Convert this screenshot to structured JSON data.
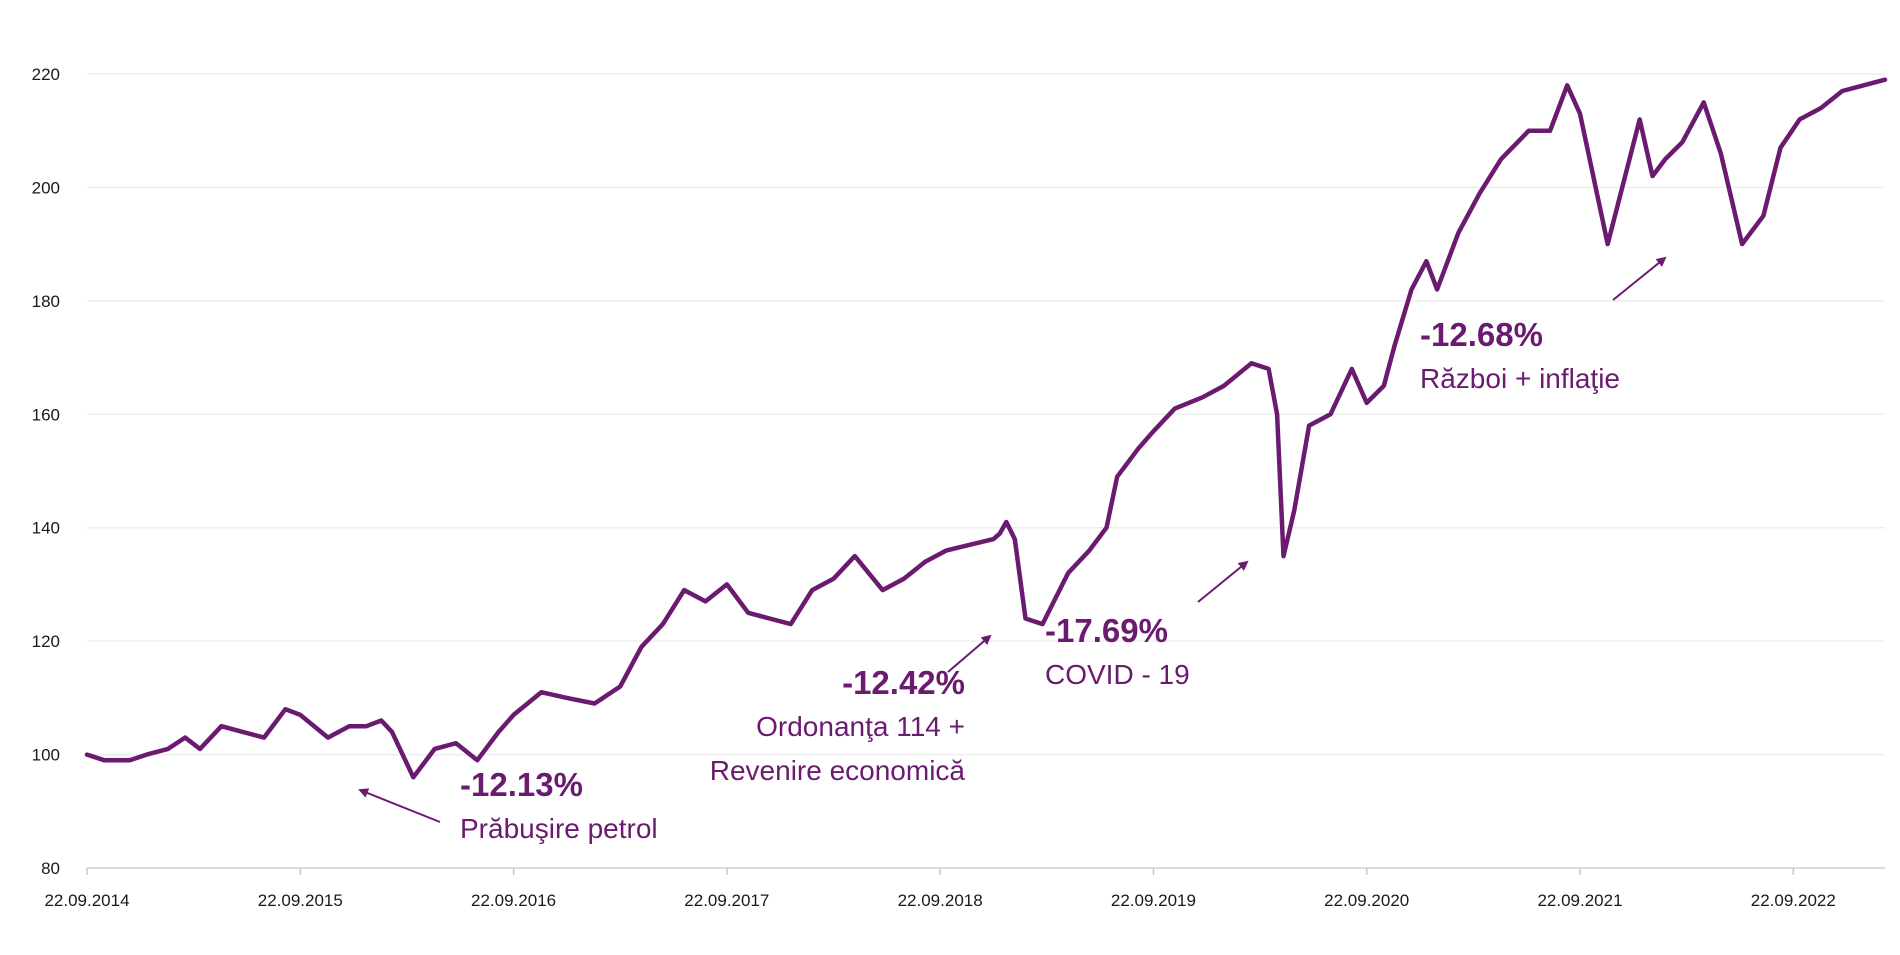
{
  "chart_data": {
    "type": "line",
    "title": "",
    "xlabel": "",
    "ylabel": "",
    "ylim": [
      80,
      220
    ],
    "yticks": [
      80,
      100,
      120,
      140,
      160,
      180,
      200,
      220
    ],
    "xticks": [
      "22.09.2014",
      "22.09.2015",
      "22.09.2016",
      "22.09.2017",
      "22.09.2018",
      "22.09.2019",
      "22.09.2020",
      "22.09.2021",
      "22.09.2022"
    ],
    "grid": "horizontal",
    "line_color": "#6a1b6f",
    "annotation_color": "#6a1b6f",
    "series": [
      {
        "x": [
          2014.72,
          2014.8,
          2014.85,
          2014.92,
          2015.0,
          2015.1,
          2015.18,
          2015.25,
          2015.35,
          2015.45,
          2015.55,
          2015.65,
          2015.72,
          2015.85,
          2015.95,
          2016.03,
          2016.1,
          2016.15,
          2016.25,
          2016.35,
          2016.45,
          2016.55,
          2016.65,
          2016.72,
          2016.85,
          2016.97,
          2017.1,
          2017.22,
          2017.32,
          2017.42,
          2017.52,
          2017.62,
          2017.72,
          2017.82,
          2017.92,
          2018.02,
          2018.12,
          2018.22,
          2018.32,
          2018.45,
          2018.55,
          2018.65,
          2018.75,
          2018.97,
          2019.0,
          2019.03,
          2019.07,
          2019.12,
          2019.2,
          2019.32,
          2019.42,
          2019.5,
          2019.55,
          2019.65,
          2019.72,
          2019.82,
          2019.95,
          2020.05,
          2020.18,
          2020.26,
          2020.3,
          2020.33,
          2020.38,
          2020.45,
          2020.55,
          2020.65,
          2020.72,
          2020.8,
          2020.85,
          2020.93,
          2021.0,
          2021.05,
          2021.15,
          2021.25,
          2021.35,
          2021.48,
          2021.58,
          2021.66,
          2021.72,
          2021.85,
          2022.0,
          2022.06,
          2022.12,
          2022.2,
          2022.3,
          2022.38,
          2022.48,
          2022.58,
          2022.66,
          2022.75,
          2022.85,
          2022.95,
          2023.05,
          2023.15
        ],
        "values": [
          100,
          99,
          99,
          99,
          100,
          101,
          103,
          101,
          105,
          104,
          103,
          108,
          107,
          103,
          105,
          105,
          106,
          104,
          96,
          101,
          102,
          99,
          104,
          107,
          111,
          110,
          109,
          112,
          119,
          123,
          129,
          127,
          130,
          125,
          124,
          123,
          129,
          131,
          135,
          129,
          131,
          134,
          136,
          138,
          139,
          141,
          138,
          124,
          123,
          132,
          136,
          140,
          149,
          154,
          157,
          161,
          163,
          165,
          169,
          168,
          160,
          135,
          143,
          158,
          160,
          168,
          162,
          165,
          172,
          182,
          187,
          182,
          192,
          199,
          205,
          210,
          210,
          218,
          213,
          190,
          212,
          202,
          205,
          208,
          215,
          206,
          190,
          195,
          207,
          212,
          214,
          217,
          218,
          219
        ]
      }
    ],
    "annotations": [
      {
        "pct": "-12.13%",
        "lines": [
          "Prăbuşire petrol"
        ],
        "x": 2015.3,
        "y": 95
      },
      {
        "pct": "-12.42%",
        "lines": [
          "Ordonanţa 114 +",
          "Revenire economică"
        ],
        "x": 2019.03,
        "y": 124
      },
      {
        "pct": "-17.69%",
        "lines": [
          "COVID - 19"
        ],
        "x": 2020.31,
        "y": 135
      },
      {
        "pct": "-12.68%",
        "lines": [
          "Război + inflaţie"
        ],
        "x": 2021.72,
        "y": 190
      }
    ]
  }
}
